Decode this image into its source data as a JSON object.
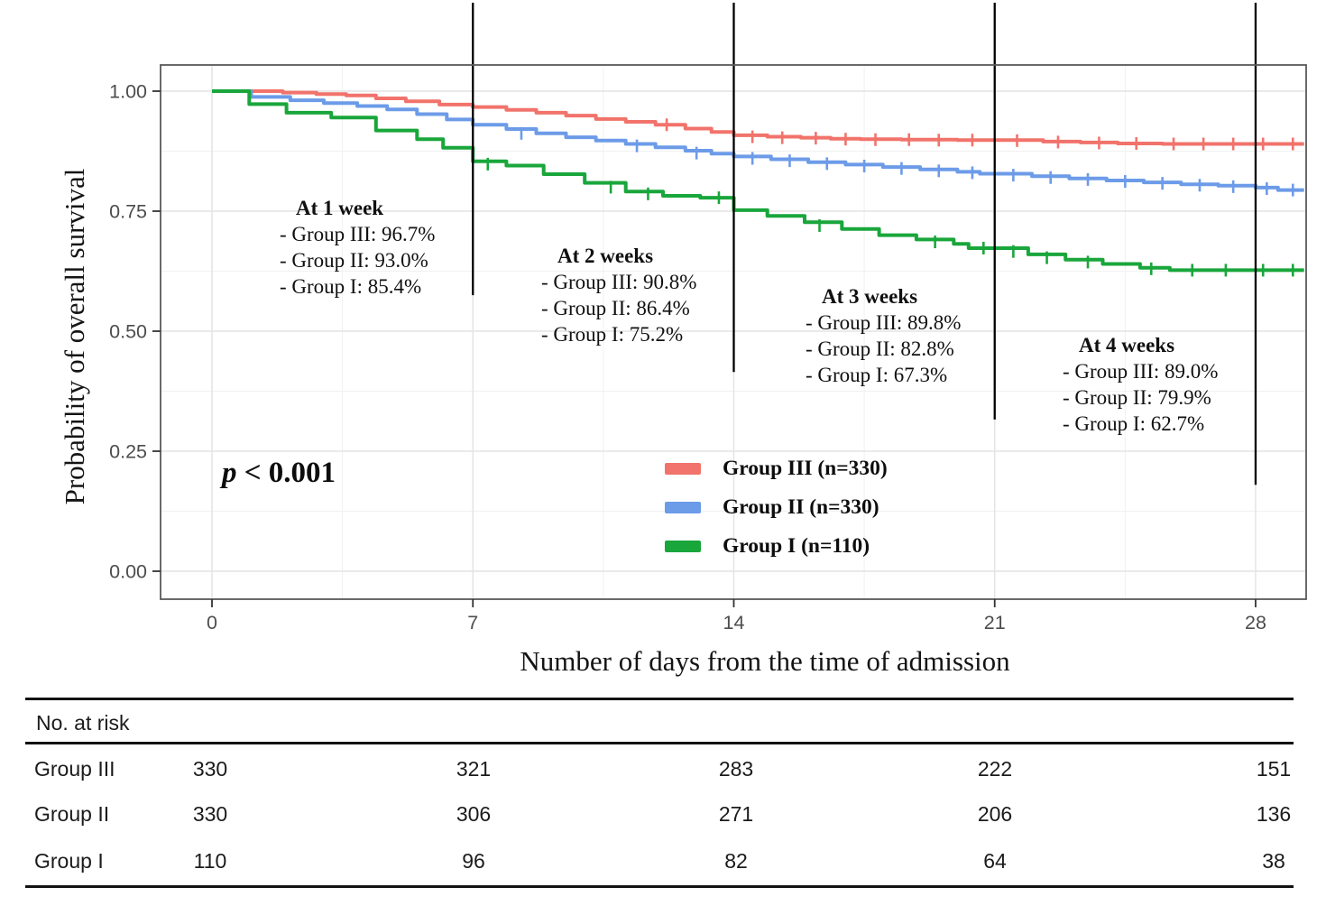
{
  "chart_data": {
    "type": "line",
    "subtype": "kaplan-meier-step-survival",
    "title": "",
    "xlabel": "Number of days from the time of admission",
    "ylabel": "Probability of overall survival",
    "xlim": [
      -1.4,
      29.3
    ],
    "ylim": [
      -0.06,
      1.05
    ],
    "grid": "on",
    "x_ticks": [
      0,
      7,
      14,
      21,
      28
    ],
    "y_ticks": [
      {
        "label": "0.00",
        "value": 0.0
      },
      {
        "label": "0.25",
        "value": 0.25
      },
      {
        "label": "0.50",
        "value": 0.5
      },
      {
        "label": "0.75",
        "value": 0.75
      },
      {
        "label": "1.00",
        "value": 1.0
      }
    ],
    "key_values": {
      "weeks": [
        7,
        14,
        21,
        28
      ],
      "group_iii_pct": [
        96.7,
        90.8,
        89.8,
        89.0
      ],
      "group_ii_pct": [
        93.0,
        86.4,
        82.8,
        79.9
      ],
      "group_i_pct": [
        85.4,
        75.2,
        67.3,
        62.7
      ]
    },
    "reference_lines": [
      {
        "x": 7,
        "y_bottom": 0.575
      },
      {
        "x": 14,
        "y_bottom": 0.415
      },
      {
        "x": 21,
        "y_bottom": 0.316
      },
      {
        "x": 28,
        "y_bottom": 0.18
      }
    ],
    "series": [
      {
        "name": "Group III (n=330)",
        "color": "#F1736B",
        "points": [
          [
            0,
            1.0
          ],
          [
            1.9,
            0.997
          ],
          [
            2.8,
            0.994
          ],
          [
            3.6,
            0.991
          ],
          [
            4.4,
            0.985
          ],
          [
            5.2,
            0.979
          ],
          [
            6.1,
            0.972
          ],
          [
            7,
            0.967
          ],
          [
            7.9,
            0.961
          ],
          [
            8.7,
            0.955
          ],
          [
            9.5,
            0.949
          ],
          [
            10.3,
            0.942
          ],
          [
            11.1,
            0.936
          ],
          [
            11.9,
            0.93
          ],
          [
            12.7,
            0.922
          ],
          [
            13.4,
            0.915
          ],
          [
            14,
            0.908
          ],
          [
            14.9,
            0.905
          ],
          [
            15.8,
            0.903
          ],
          [
            16.6,
            0.901
          ],
          [
            17.4,
            0.9
          ],
          [
            18.5,
            0.899
          ],
          [
            20,
            0.898
          ],
          [
            22.3,
            0.895
          ],
          [
            23.3,
            0.893
          ],
          [
            24.3,
            0.891
          ],
          [
            25.5,
            0.89
          ],
          [
            29.3,
            0.89
          ]
        ],
        "censor_marks": [
          [
            12.2,
            0.93
          ],
          [
            14.5,
            0.905
          ],
          [
            15.3,
            0.903
          ],
          [
            16.2,
            0.902
          ],
          [
            17,
            0.9
          ],
          [
            17.8,
            0.899
          ],
          [
            18.7,
            0.899
          ],
          [
            19.5,
            0.898
          ],
          [
            20.4,
            0.898
          ],
          [
            21.6,
            0.897
          ],
          [
            22.7,
            0.894
          ],
          [
            23.8,
            0.892
          ],
          [
            24.8,
            0.891
          ],
          [
            25.8,
            0.89
          ],
          [
            26.6,
            0.89
          ],
          [
            27.4,
            0.89
          ],
          [
            28.2,
            0.89
          ],
          [
            29,
            0.89
          ]
        ]
      },
      {
        "name": "Group II (n=330)",
        "color": "#6C9BE8",
        "points": [
          [
            0,
            1.0
          ],
          [
            1.05,
            0.988
          ],
          [
            2.1,
            0.981
          ],
          [
            3,
            0.975
          ],
          [
            3.9,
            0.969
          ],
          [
            4.7,
            0.962
          ],
          [
            5.5,
            0.952
          ],
          [
            6.3,
            0.941
          ],
          [
            7,
            0.93
          ],
          [
            7.9,
            0.921
          ],
          [
            8.7,
            0.912
          ],
          [
            9.5,
            0.904
          ],
          [
            10.3,
            0.897
          ],
          [
            11.1,
            0.89
          ],
          [
            11.9,
            0.883
          ],
          [
            12.7,
            0.876
          ],
          [
            13.4,
            0.87
          ],
          [
            14,
            0.864
          ],
          [
            15,
            0.858
          ],
          [
            16,
            0.852
          ],
          [
            17,
            0.847
          ],
          [
            18,
            0.842
          ],
          [
            19,
            0.837
          ],
          [
            20,
            0.832
          ],
          [
            20.6,
            0.828
          ],
          [
            22,
            0.823
          ],
          [
            23,
            0.818
          ],
          [
            24,
            0.814
          ],
          [
            25,
            0.81
          ],
          [
            26,
            0.806
          ],
          [
            27,
            0.803
          ],
          [
            28,
            0.799
          ],
          [
            28.6,
            0.794
          ],
          [
            29.3,
            0.794
          ]
        ],
        "censor_marks": [
          [
            8.3,
            0.912
          ],
          [
            11.4,
            0.886
          ],
          [
            13,
            0.871
          ],
          [
            14.5,
            0.86
          ],
          [
            15.5,
            0.855
          ],
          [
            16.5,
            0.849
          ],
          [
            17.5,
            0.844
          ],
          [
            18.5,
            0.839
          ],
          [
            19.5,
            0.834
          ],
          [
            20.4,
            0.83
          ],
          [
            21.5,
            0.825
          ],
          [
            22.5,
            0.82
          ],
          [
            23.5,
            0.816
          ],
          [
            24.5,
            0.812
          ],
          [
            25.5,
            0.808
          ],
          [
            26.5,
            0.804
          ],
          [
            27.4,
            0.801
          ],
          [
            28.3,
            0.797
          ],
          [
            29,
            0.794
          ]
        ]
      },
      {
        "name": "Group I (n=110)",
        "color": "#19A63B",
        "points": [
          [
            0,
            1.0
          ],
          [
            1,
            0.973
          ],
          [
            2,
            0.955
          ],
          [
            3.2,
            0.945
          ],
          [
            4.4,
            0.918
          ],
          [
            5.5,
            0.9
          ],
          [
            6.2,
            0.882
          ],
          [
            7,
            0.854
          ],
          [
            7.9,
            0.845
          ],
          [
            8.9,
            0.827
          ],
          [
            10,
            0.809
          ],
          [
            11.1,
            0.791
          ],
          [
            12.1,
            0.782
          ],
          [
            13.1,
            0.778
          ],
          [
            14,
            0.752
          ],
          [
            14.9,
            0.74
          ],
          [
            15.9,
            0.727
          ],
          [
            16.9,
            0.713
          ],
          [
            17.9,
            0.7
          ],
          [
            18.9,
            0.691
          ],
          [
            19.9,
            0.682
          ],
          [
            20.3,
            0.673
          ],
          [
            21.9,
            0.66
          ],
          [
            22.9,
            0.649
          ],
          [
            23.9,
            0.64
          ],
          [
            24.9,
            0.632
          ],
          [
            25.7,
            0.627
          ],
          [
            29.3,
            0.627
          ]
        ],
        "censor_marks": [
          [
            7.4,
            0.848
          ],
          [
            10.7,
            0.8
          ],
          [
            11.7,
            0.786
          ],
          [
            13.6,
            0.778
          ],
          [
            16.3,
            0.72
          ],
          [
            19.4,
            0.686
          ],
          [
            20.7,
            0.673
          ],
          [
            21.5,
            0.666
          ],
          [
            22.4,
            0.653
          ],
          [
            23.5,
            0.644
          ],
          [
            25.2,
            0.63
          ],
          [
            26.3,
            0.627
          ],
          [
            27.2,
            0.627
          ],
          [
            28.2,
            0.627
          ],
          [
            29,
            0.627
          ]
        ]
      }
    ],
    "legend_position": "center-right-inside"
  },
  "p_value": {
    "italic": "p",
    "rest": " < 0.001"
  },
  "annotations": [
    {
      "title": "At 1 week",
      "lines": [
        "- Group III: 96.7%",
        "- Group II: 93.0%",
        "- Group I: 85.4%"
      ]
    },
    {
      "title": "At 2 weeks",
      "lines": [
        "- Group III: 90.8%",
        "- Group II: 86.4%",
        "- Group I: 75.2%"
      ]
    },
    {
      "title": "At 3 weeks",
      "lines": [
        "- Group III: 89.8%",
        "- Group II: 82.8%",
        "- Group I: 67.3%"
      ]
    },
    {
      "title": "At 4 weeks",
      "lines": [
        "- Group III: 89.0%",
        "- Group II: 79.9%",
        "- Group I: 62.7%"
      ]
    }
  ],
  "legend": {
    "items": [
      {
        "label": "Group III (n=330)",
        "color": "#F1736B"
      },
      {
        "label": "Group II (n=330)",
        "color": "#6C9BE8"
      },
      {
        "label": "Group I (n=110)",
        "color": "#19A63B"
      }
    ]
  },
  "axes": {
    "y_title": "Probability of overall survival",
    "x_title": "Number of days from the time of admission"
  },
  "risk_table": {
    "header": "No. at risk",
    "columns": [
      0,
      7,
      14,
      21,
      28
    ],
    "rows": [
      {
        "label": "Group III",
        "values": [
          "330",
          "321",
          "283",
          "222",
          "151"
        ]
      },
      {
        "label": "Group II",
        "values": [
          "330",
          "306",
          "271",
          "206",
          "136"
        ]
      },
      {
        "label": "Group I",
        "values": [
          "110",
          "96",
          "82",
          "64",
          "38"
        ]
      }
    ]
  },
  "colors": {
    "group_iii": "#F1736B",
    "group_ii": "#6C9BE8",
    "group_i": "#19A63B",
    "reference_line": "#000000",
    "panel_border": "#58595B",
    "grid_major": "#e4e4e4",
    "grid_minor": "#f1f1f1",
    "tick_text": "#4d4d4d"
  }
}
